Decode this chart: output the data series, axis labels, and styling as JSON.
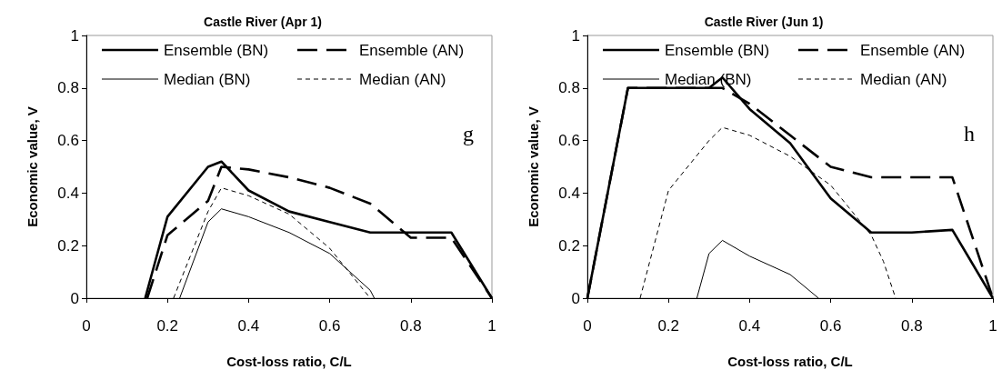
{
  "chart_data": [
    {
      "type": "line",
      "title": "Castle River (Apr 1)",
      "xlabel": "Cost-loss ratio, C/L",
      "ylabel": "Economic value, V",
      "annotations": [
        "g"
      ],
      "xlim": [
        0,
        1
      ],
      "xticks": [
        0,
        0.2,
        0.4,
        0.6,
        0.8,
        1
      ],
      "ylim": [
        0,
        1
      ],
      "yticks": [
        0,
        0.2,
        0.4,
        0.6,
        0.8,
        1
      ],
      "grid": false,
      "legend": "top",
      "marker": "none",
      "series": [
        {
          "name": "Ensemble (BN)",
          "color": "#000000",
          "line_style": "solid",
          "x": [
            0.145,
            0.2,
            0.3,
            0.333,
            0.4,
            0.5,
            0.6,
            0.7,
            0.8,
            0.9,
            1
          ],
          "values": [
            0,
            0.31,
            0.5,
            0.52,
            0.41,
            0.33,
            0.29,
            0.25,
            0.25,
            0.25,
            0
          ]
        },
        {
          "name": "Ensemble (AN)",
          "color": "#000000",
          "line_style": "dashed",
          "x": [
            0.15,
            0.2,
            0.3,
            0.333,
            0.4,
            0.5,
            0.6,
            0.7,
            0.8,
            0.9,
            1
          ],
          "values": [
            0,
            0.24,
            0.37,
            0.5,
            0.49,
            0.46,
            0.42,
            0.36,
            0.23,
            0.23,
            0
          ]
        },
        {
          "name": "Median (BN)",
          "color": "#000000",
          "line_style": "solid",
          "x": [
            0.23,
            0.3,
            0.333,
            0.4,
            0.5,
            0.6,
            0.7,
            0.71
          ],
          "values": [
            0,
            0.29,
            0.34,
            0.31,
            0.25,
            0.17,
            0.03,
            0
          ]
        },
        {
          "name": "Median (AN)",
          "color": "#000000",
          "line_style": "dashed",
          "x": [
            0.215,
            0.3,
            0.333,
            0.4,
            0.5,
            0.6,
            0.7
          ],
          "values": [
            0,
            0.33,
            0.42,
            0.39,
            0.32,
            0.19,
            0
          ]
        }
      ]
    },
    {
      "type": "line",
      "title": "Castle River (Jun 1)",
      "xlabel": "Cost-loss ratio, C/L",
      "ylabel": "Economic value, V",
      "annotations": [
        "h"
      ],
      "xlim": [
        0,
        1
      ],
      "xticks": [
        0,
        0.2,
        0.4,
        0.6,
        0.8,
        1
      ],
      "ylim": [
        0,
        1
      ],
      "yticks": [
        0,
        0.2,
        0.4,
        0.6,
        0.8,
        1
      ],
      "grid": false,
      "legend": "top",
      "marker": "none",
      "series": [
        {
          "name": "Ensemble (BN)",
          "color": "#000000",
          "line_style": "solid",
          "x": [
            0,
            0.1,
            0.2,
            0.3,
            0.333,
            0.4,
            0.5,
            0.6,
            0.7,
            0.8,
            0.9,
            1
          ],
          "values": [
            0,
            0.8,
            0.8,
            0.8,
            0.84,
            0.72,
            0.59,
            0.38,
            0.25,
            0.25,
            0.26,
            0
          ]
        },
        {
          "name": "Ensemble (AN)",
          "color": "#000000",
          "line_style": "dashed",
          "x": [
            0,
            0.1,
            0.2,
            0.3,
            0.333,
            0.4,
            0.5,
            0.6,
            0.7,
            0.8,
            0.9,
            1
          ],
          "values": [
            0,
            0.8,
            0.8,
            0.8,
            0.8,
            0.74,
            0.62,
            0.5,
            0.46,
            0.46,
            0.46,
            0
          ]
        },
        {
          "name": "Median (BN)",
          "color": "#000000",
          "line_style": "solid",
          "x": [
            0.27,
            0.3,
            0.333,
            0.4,
            0.5,
            0.57
          ],
          "values": [
            0,
            0.17,
            0.22,
            0.16,
            0.09,
            0
          ]
        },
        {
          "name": "Median (AN)",
          "color": "#000000",
          "line_style": "dashed",
          "x": [
            0.13,
            0.2,
            0.3,
            0.333,
            0.4,
            0.5,
            0.6,
            0.7,
            0.73,
            0.76
          ],
          "values": [
            0,
            0.41,
            0.6,
            0.65,
            0.62,
            0.54,
            0.43,
            0.24,
            0.14,
            0
          ]
        }
      ]
    }
  ]
}
